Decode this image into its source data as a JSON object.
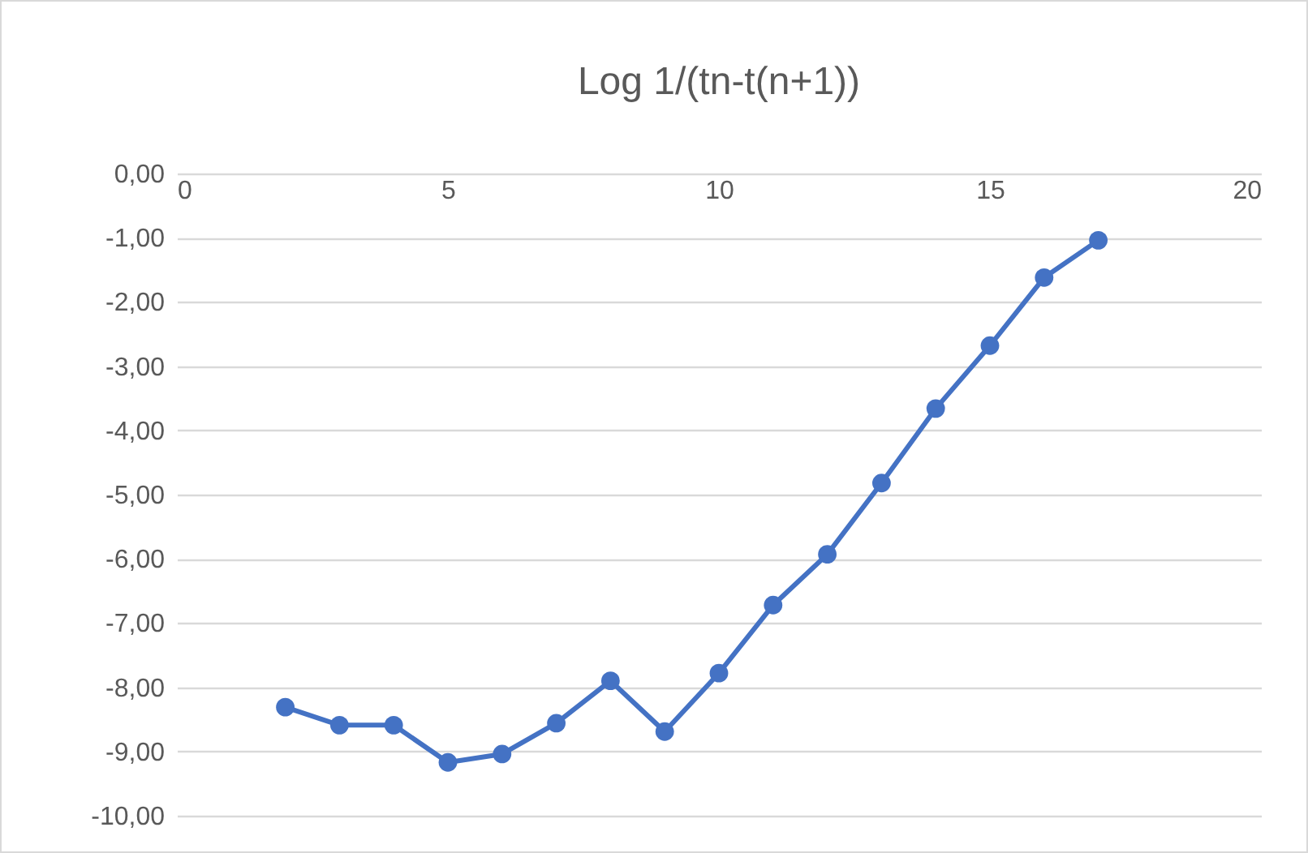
{
  "chart_data": {
    "type": "line",
    "title": "Log 1/(tn-t(n+1))",
    "x": [
      2,
      3,
      4,
      5,
      6,
      7,
      8,
      9,
      10,
      11,
      12,
      13,
      14,
      15,
      16,
      17
    ],
    "series": [
      {
        "color": "#4472c4",
        "values": [
          -8.31,
          -8.59,
          -8.59,
          -9.17,
          -9.04,
          -8.56,
          -7.9,
          -8.69,
          -7.78,
          -6.72,
          -5.93,
          -4.82,
          -3.66,
          -2.68,
          -1.62,
          -1.04
        ]
      }
    ],
    "xlim": [
      0,
      20
    ],
    "xticks": [
      0,
      5,
      10,
      15,
      20
    ],
    "ylim": [
      -10,
      0
    ],
    "yticks": [
      {
        "value": 0,
        "label": "0,00"
      },
      {
        "value": -1,
        "label": "-1,00"
      },
      {
        "value": -2,
        "label": "-2,00"
      },
      {
        "value": -3,
        "label": "-3,00"
      },
      {
        "value": -4,
        "label": "-4,00"
      },
      {
        "value": -5,
        "label": "-5,00"
      },
      {
        "value": -6,
        "label": "-6,00"
      },
      {
        "value": -7,
        "label": "-7,00"
      },
      {
        "value": -8,
        "label": "-8,00"
      },
      {
        "value": -9,
        "label": "-9,00"
      },
      {
        "value": -10,
        "label": "-10,00"
      }
    ],
    "grid": "y",
    "marker": "circle",
    "line_style": "solid"
  }
}
